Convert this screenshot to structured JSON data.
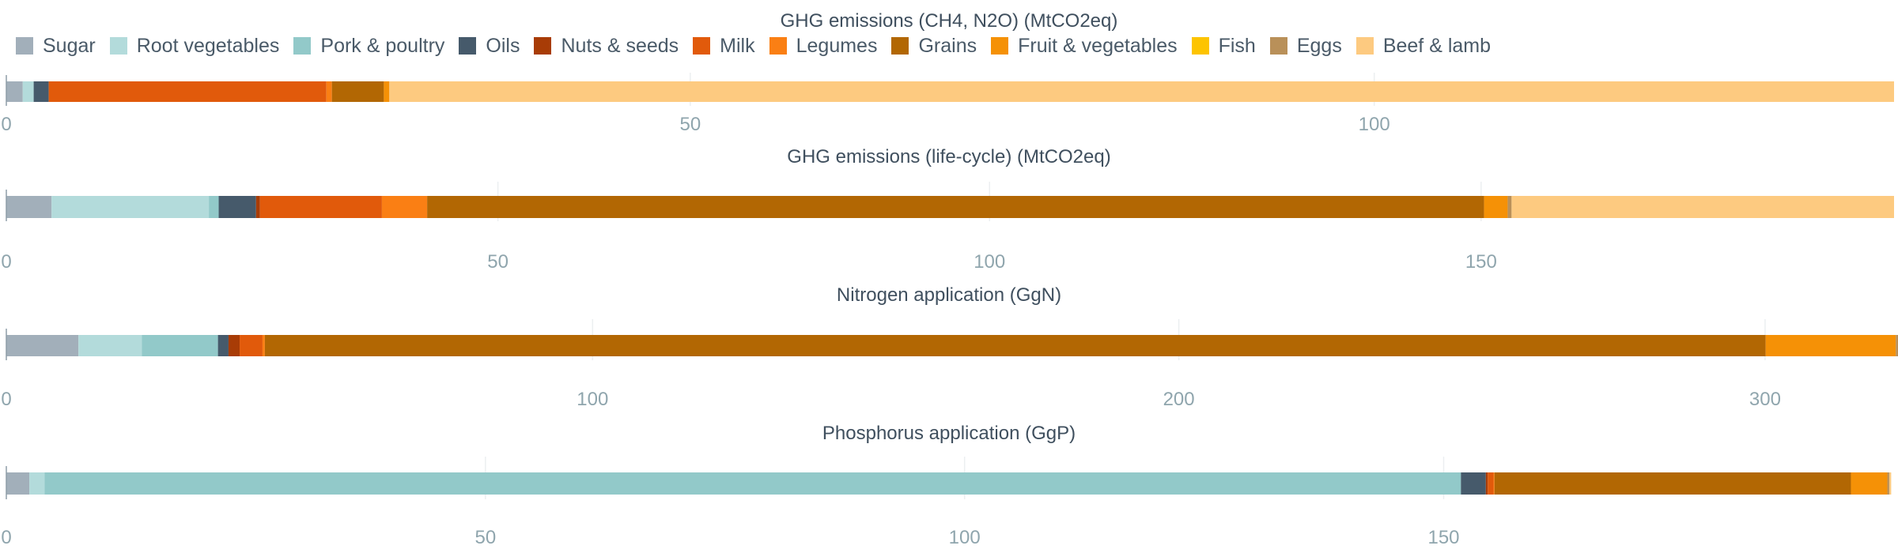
{
  "legend": {
    "items": [
      {
        "label": "Sugar",
        "color": "#a2afba"
      },
      {
        "label": "Root vegetables",
        "color": "#b3dbdb"
      },
      {
        "label": "Pork & poultry",
        "color": "#92c9c9"
      },
      {
        "label": "Oils",
        "color": "#465a6b"
      },
      {
        "label": "Nuts & seeds",
        "color": "#a83c06"
      },
      {
        "label": "Milk",
        "color": "#e15a0b"
      },
      {
        "label": "Legumes",
        "color": "#fa7f14"
      },
      {
        "label": "Grains",
        "color": "#b26703"
      },
      {
        "label": "Fruit & vegetables",
        "color": "#f59106"
      },
      {
        "label": "Fish",
        "color": "#fdc400"
      },
      {
        "label": "Eggs",
        "color": "#b99059"
      },
      {
        "label": "Beef & lamb",
        "color": "#fdca80"
      }
    ]
  },
  "chart_data": [
    {
      "type": "bar",
      "orientation": "horizontal-stacked",
      "title": "GHG emissions (CH4, N2O) (MtCO2eq)",
      "xlim": [
        0,
        138
      ],
      "ticks": [
        0,
        50,
        100
      ],
      "grid": true,
      "segments": [
        1.2,
        0.8,
        0,
        1.1,
        0,
        20.3,
        0.4,
        3.8,
        0.4,
        0,
        0,
        110
      ]
    },
    {
      "type": "bar",
      "orientation": "horizontal-stacked",
      "title": "GHG emissions (life-cycle) (MtCO2eq)",
      "xlim": [
        0,
        192
      ],
      "ticks": [
        0,
        50,
        100,
        150
      ],
      "grid": true,
      "segments": [
        4.6,
        16,
        1,
        3.8,
        0.4,
        12.4,
        4.6,
        107.5,
        2.4,
        0,
        0.4,
        38.9
      ]
    },
    {
      "type": "bar",
      "orientation": "horizontal-stacked",
      "title": "Nitrogen application (GgN)",
      "xlim": [
        0,
        322
      ],
      "ticks": [
        0,
        100,
        200,
        300
      ],
      "grid": true,
      "segments": [
        12.3,
        10.8,
        13,
        1.8,
        1.9,
        3.9,
        0.4,
        256,
        22.2,
        0,
        1.2,
        0.5
      ]
    },
    {
      "type": "bar",
      "orientation": "horizontal-stacked",
      "title": "Phosphorus application (GgP)",
      "xlim": [
        0,
        197
      ],
      "ticks": [
        0,
        50,
        100,
        150
      ],
      "grid": true,
      "segments": [
        2.4,
        1.6,
        147.8,
        2.6,
        0.2,
        0.6,
        0.1,
        37.2,
        3.8,
        0,
        0.2,
        0.2
      ]
    }
  ]
}
